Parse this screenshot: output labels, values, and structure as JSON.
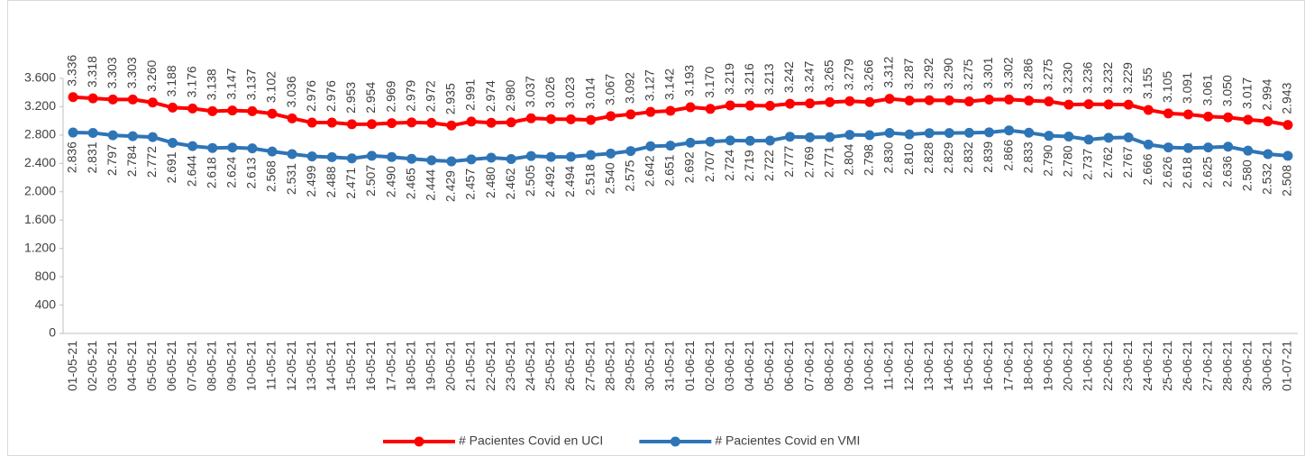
{
  "chart_data": {
    "type": "line",
    "categories": [
      "01-05-21",
      "02-05-21",
      "03-05-21",
      "04-05-21",
      "05-05-21",
      "06-05-21",
      "07-05-21",
      "08-05-21",
      "09-05-21",
      "10-05-21",
      "11-05-21",
      "12-05-21",
      "13-05-21",
      "14-05-21",
      "15-05-21",
      "16-05-21",
      "17-05-21",
      "18-05-21",
      "19-05-21",
      "20-05-21",
      "21-05-21",
      "22-05-21",
      "23-05-21",
      "24-05-21",
      "25-05-21",
      "26-05-21",
      "27-05-21",
      "28-05-21",
      "29-05-21",
      "30-05-21",
      "31-05-21",
      "01-06-21",
      "02-06-21",
      "03-06-21",
      "04-06-21",
      "05-06-21",
      "06-06-21",
      "07-06-21",
      "08-06-21",
      "09-06-21",
      "10-06-21",
      "11-06-21",
      "12-06-21",
      "13-06-21",
      "14-06-21",
      "15-06-21",
      "16-06-21",
      "17-06-21",
      "18-06-21",
      "19-06-21",
      "20-06-21",
      "21-06-21",
      "22-06-21",
      "23-06-21",
      "24-06-21",
      "25-06-21",
      "26-06-21",
      "27-06-21",
      "28-06-21",
      "29-06-21",
      "30-06-21",
      "01-07-21"
    ],
    "series": [
      {
        "name": "# Pacientes Covid en UCI",
        "color": "#ff0000",
        "values": [
          3336,
          3318,
          3303,
          3303,
          3260,
          3188,
          3176,
          3138,
          3147,
          3137,
          3102,
          3036,
          2976,
          2976,
          2953,
          2954,
          2969,
          2979,
          2972,
          2935,
          2991,
          2974,
          2980,
          3037,
          3026,
          3023,
          3014,
          3067,
          3092,
          3127,
          3142,
          3193,
          3170,
          3219,
          3216,
          3213,
          3242,
          3247,
          3265,
          3279,
          3266,
          3312,
          3287,
          3292,
          3290,
          3275,
          3301,
          3302,
          3286,
          3275,
          3230,
          3236,
          3232,
          3229,
          3155,
          3105,
          3091,
          3061,
          3050,
          3017,
          2994,
          2943
        ],
        "value_labels": [
          "3.336",
          "3.318",
          "3.303",
          "3.303",
          "3.260",
          "3.188",
          "3.176",
          "3.138",
          "3.147",
          "3.137",
          "3.102",
          "3.036",
          "2.976",
          "2.976",
          "2.953",
          "2.954",
          "2.969",
          "2.979",
          "2.972",
          "2.935",
          "2.991",
          "2.974",
          "2.980",
          "3.037",
          "3.026",
          "3.023",
          "3.014",
          "3.067",
          "3.092",
          "3.127",
          "3.142",
          "3.193",
          "3.170",
          "3.219",
          "3.216",
          "3.213",
          "3.242",
          "3.247",
          "3.265",
          "3.279",
          "3.266",
          "3.312",
          "3.287",
          "3.292",
          "3.290",
          "3.275",
          "3.301",
          "3.302",
          "3.286",
          "3.275",
          "3.230",
          "3.236",
          "3.232",
          "3.229",
          "3.155",
          "3.105",
          "3.091",
          "3.061",
          "3.050",
          "3.017",
          "2.994",
          "2.943"
        ]
      },
      {
        "name": "# Pacientes Covid en VMI",
        "color": "#2e75b6",
        "values": [
          2836,
          2831,
          2797,
          2784,
          2772,
          2691,
          2644,
          2618,
          2624,
          2613,
          2568,
          2531,
          2499,
          2488,
          2471,
          2507,
          2490,
          2465,
          2444,
          2429,
          2457,
          2480,
          2462,
          2505,
          2492,
          2494,
          2518,
          2540,
          2575,
          2642,
          2651,
          2692,
          2707,
          2724,
          2719,
          2722,
          2777,
          2769,
          2771,
          2804,
          2798,
          2830,
          2810,
          2828,
          2829,
          2832,
          2839,
          2866,
          2833,
          2790,
          2780,
          2737,
          2762,
          2767,
          2666,
          2626,
          2618,
          2625,
          2636,
          2580,
          2532,
          2508
        ],
        "value_labels": [
          "2.836",
          "2.831",
          "2.797",
          "2.784",
          "2.772",
          "2.691",
          "2.644",
          "2.618",
          "2.624",
          "2.613",
          "2.568",
          "2.531",
          "2.499",
          "2.488",
          "2.471",
          "2.507",
          "2.490",
          "2.465",
          "2.444",
          "2.429",
          "2.457",
          "2.480",
          "2.462",
          "2.505",
          "2.492",
          "2.494",
          "2.518",
          "2.540",
          "2.575",
          "2.642",
          "2.651",
          "2.692",
          "2.707",
          "2.724",
          "2.719",
          "2.722",
          "2.777",
          "2.769",
          "2.771",
          "2.804",
          "2.798",
          "2.830",
          "2.810",
          "2.828",
          "2.829",
          "2.832",
          "2.839",
          "2.866",
          "2.833",
          "2.790",
          "2.780",
          "2.737",
          "2.762",
          "2.767",
          "2.666",
          "2.626",
          "2.618",
          "2.625",
          "2.636",
          "2.580",
          "2.532",
          "2.508"
        ]
      }
    ],
    "ylim": [
      0,
      3600
    ],
    "yticks": [
      0,
      400,
      800,
      {
        "value": 1200,
        "label": "1.200"
      },
      {
        "value": 1600,
        "label": "1.600"
      },
      {
        "value": 2000,
        "label": "2.000"
      },
      {
        "value": 2400,
        "label": "2.400"
      },
      {
        "value": 2800,
        "label": "2.800"
      },
      {
        "value": 3200,
        "label": "3.200"
      },
      {
        "value": 3600,
        "label": "3.600"
      }
    ],
    "grid": false,
    "legend": "bottom"
  }
}
